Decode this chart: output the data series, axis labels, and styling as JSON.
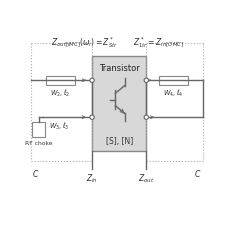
{
  "line_color": "#666666",
  "text_color": "#333333",
  "box_fill": "#e0e0e0",
  "stub_fill": "#ffffff",
  "transistor_label": "Transistor",
  "sn_label": "[S], [N]",
  "rf_choke": "RF choke",
  "top_label_left": "$Z_{out[IMC]}(\\omega_i) = Z^*_{Str}$",
  "top_label_right": "$Z^*_{1tr} = Z_{in[OMC]}$",
  "zin_label": "$Z_{in}$",
  "zout_label": "$Z_{out}$",
  "c_left": "$C$",
  "c_right": "$C$",
  "w2l2": "$W_2, \\ell_2$",
  "w3l3": "$W_3, \\ell_3$",
  "w4l4": "$W_4, \\ell_4$"
}
